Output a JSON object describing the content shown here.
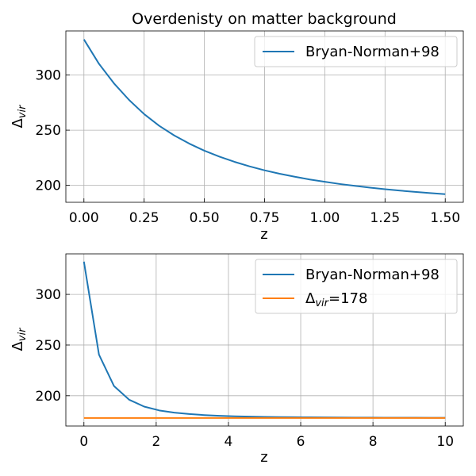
{
  "chart_data": [
    {
      "type": "line",
      "title": "Overdenisty on matter background",
      "xlabel": "z",
      "ylabel": "Δ_vir",
      "ylabel_base": "Δ",
      "ylabel_sub": "vir",
      "xlim": [
        -0.075,
        1.575
      ],
      "ylim": [
        184.6,
        340.0
      ],
      "xticks": [
        0.0,
        0.25,
        0.5,
        0.75,
        1.0,
        1.25,
        1.5
      ],
      "xtick_labels": [
        "0.00",
        "0.25",
        "0.50",
        "0.75",
        "1.00",
        "1.25",
        "1.50"
      ],
      "yticks": [
        200,
        250,
        300
      ],
      "ytick_labels": [
        "200",
        "250",
        "300"
      ],
      "grid": true,
      "legend": "upper right",
      "series": [
        {
          "name": "Bryan-Norman+98",
          "color": "#1f77b4",
          "x": [
            0.0,
            0.0625,
            0.125,
            0.1875,
            0.25,
            0.3125,
            0.375,
            0.4375,
            0.5,
            0.5625,
            0.625,
            0.6875,
            0.75,
            0.8125,
            0.875,
            0.9375,
            1.0,
            1.0625,
            1.125,
            1.1875,
            1.25,
            1.3125,
            1.375,
            1.4375,
            1.5
          ],
          "y": [
            332.3,
            310.2,
            292.4,
            277.4,
            264.6,
            254.0,
            245.2,
            237.8,
            231.4,
            226.0,
            221.3,
            217.2,
            213.6,
            210.5,
            207.8,
            205.3,
            203.2,
            201.2,
            199.5,
            197.9,
            196.5,
            195.2,
            194.0,
            193.0,
            192.0
          ]
        }
      ]
    },
    {
      "type": "line",
      "title": "",
      "xlabel": "z",
      "ylabel": "Δ_vir",
      "ylabel_base": "Δ",
      "ylabel_sub": "vir",
      "xlim": [
        -0.5,
        10.5
      ],
      "ylim": [
        170.1,
        340.0
      ],
      "xticks": [
        0,
        2,
        4,
        6,
        8,
        10
      ],
      "xtick_labels": [
        "0",
        "2",
        "4",
        "6",
        "8",
        "10"
      ],
      "yticks": [
        200,
        250,
        300
      ],
      "ytick_labels": [
        "200",
        "250",
        "300"
      ],
      "grid": true,
      "legend": "upper right",
      "series": [
        {
          "name": "Bryan-Norman+98",
          "color": "#1f77b4",
          "x": [
            0.0,
            0.4167,
            0.8333,
            1.25,
            1.6667,
            2.0833,
            2.5,
            2.9167,
            3.3333,
            3.75,
            4.1667,
            4.5833,
            5.0,
            5.4167,
            5.8333,
            6.25,
            6.6667,
            7.0833,
            7.5,
            7.9167,
            8.3333,
            8.75,
            9.1667,
            9.5833,
            10.0
          ],
          "y": [
            332.3,
            240.6,
            209.5,
            196.1,
            189.3,
            185.5,
            183.3,
            181.9,
            180.9,
            180.2,
            179.7,
            179.4,
            179.1,
            178.9,
            178.8,
            178.7,
            178.6,
            178.5,
            178.4,
            178.4,
            178.3,
            178.3,
            178.3,
            178.2,
            178.2
          ]
        },
        {
          "name_base": "Δ",
          "name_sub": "vir",
          "name_suffix": "=178",
          "color": "#ff7f0e",
          "x": [
            0,
            10
          ],
          "y": [
            178,
            178
          ]
        }
      ]
    }
  ]
}
